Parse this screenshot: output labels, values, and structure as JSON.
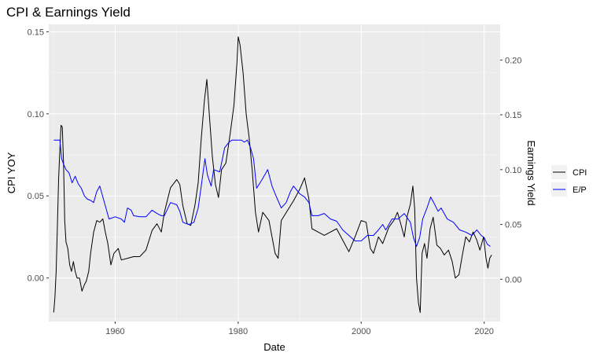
{
  "chart_data": {
    "type": "line",
    "title": "CPI & Earnings Yield",
    "xlabel": "Date",
    "ylabel": "CPI YOY",
    "y2label": "Earnings Yield",
    "xlim": [
      1949.2,
      2022.6
    ],
    "ylim": [
      -0.0265,
      0.1545
    ],
    "y2lim": [
      -0.0385,
      0.2325
    ],
    "x_ticks": [
      1960,
      1980,
      2000,
      2020
    ],
    "x_tick_labels": [
      "1960",
      "1980",
      "2000",
      "2020"
    ],
    "y_ticks": [
      0.0,
      0.05,
      0.1,
      0.15
    ],
    "y_tick_labels": [
      "0.00",
      "0.05",
      "0.10",
      "0.15"
    ],
    "y2_ticks": [
      0.0,
      0.05,
      0.1,
      0.15,
      0.2
    ],
    "y2_tick_labels": [
      "0.00",
      "0.05",
      "0.10",
      "0.15",
      "0.20"
    ],
    "grid": true,
    "legend": {
      "placement": "right",
      "entries": [
        {
          "name": "CPI",
          "color": "#000000"
        },
        {
          "name": "E/P",
          "color": "#0000ff"
        }
      ]
    },
    "series": [
      {
        "name": "CPI",
        "axis": "left",
        "color": "#000000",
        "x": [
          1950.0,
          1950.2,
          1950.4,
          1950.6,
          1950.8,
          1951.0,
          1951.2,
          1951.4,
          1951.6,
          1951.8,
          1952.0,
          1952.3,
          1952.6,
          1952.9,
          1953.2,
          1953.5,
          1953.8,
          1954.2,
          1954.6,
          1955.0,
          1955.3,
          1955.7,
          1956.0,
          1956.5,
          1957.0,
          1957.5,
          1958.0,
          1958.4,
          1958.8,
          1959.3,
          1959.8,
          1960.5,
          1961.0,
          1962.0,
          1963.0,
          1964.0,
          1965.0,
          1966.0,
          1966.8,
          1967.5,
          1968.0,
          1969.0,
          1970.0,
          1970.5,
          1971.0,
          1971.7,
          1972.3,
          1973.0,
          1973.5,
          1974.0,
          1974.5,
          1974.9,
          1975.3,
          1975.8,
          1976.3,
          1976.8,
          1977.3,
          1978.0,
          1978.7,
          1979.3,
          1979.8,
          1980.0,
          1980.3,
          1980.8,
          1981.3,
          1981.8,
          1982.3,
          1982.8,
          1983.3,
          1984.0,
          1985.0,
          1986.0,
          1986.5,
          1987.0,
          1988.0,
          1989.0,
          1990.0,
          1990.8,
          1991.5,
          1992.0,
          1993.0,
          1994.0,
          1995.0,
          1996.0,
          1997.0,
          1998.0,
          1999.0,
          2000.0,
          2000.8,
          2001.5,
          2002.0,
          2002.8,
          2003.5,
          2004.5,
          2005.3,
          2005.9,
          2006.5,
          2007.0,
          2007.5,
          2008.0,
          2008.4,
          2008.7,
          2009.0,
          2009.3,
          2009.6,
          2009.9,
          2010.3,
          2010.7,
          2011.2,
          2011.7,
          2012.3,
          2012.9,
          2013.5,
          2014.2,
          2014.8,
          2015.3,
          2015.9,
          2016.5,
          2017.0,
          2017.6,
          2018.2,
          2018.8,
          2019.3,
          2019.9,
          2020.3,
          2020.6,
          2020.9,
          2021.2
        ],
        "values": [
          -0.021,
          -0.012,
          0.004,
          0.03,
          0.06,
          0.078,
          0.093,
          0.092,
          0.07,
          0.035,
          0.022,
          0.018,
          0.008,
          0.004,
          0.01,
          0.004,
          0.0,
          0.0,
          -0.008,
          -0.004,
          -0.002,
          0.004,
          0.015,
          0.028,
          0.035,
          0.034,
          0.036,
          0.028,
          0.021,
          0.008,
          0.015,
          0.018,
          0.011,
          0.012,
          0.013,
          0.013,
          0.017,
          0.029,
          0.033,
          0.028,
          0.04,
          0.055,
          0.06,
          0.057,
          0.044,
          0.033,
          0.032,
          0.045,
          0.058,
          0.085,
          0.108,
          0.121,
          0.1,
          0.074,
          0.057,
          0.049,
          0.066,
          0.07,
          0.088,
          0.105,
          0.131,
          0.147,
          0.142,
          0.125,
          0.1,
          0.085,
          0.065,
          0.04,
          0.028,
          0.04,
          0.035,
          0.015,
          0.012,
          0.035,
          0.041,
          0.047,
          0.054,
          0.061,
          0.048,
          0.03,
          0.028,
          0.026,
          0.028,
          0.03,
          0.023,
          0.016,
          0.025,
          0.035,
          0.034,
          0.018,
          0.015,
          0.025,
          0.021,
          0.031,
          0.035,
          0.04,
          0.032,
          0.025,
          0.038,
          0.045,
          0.056,
          0.042,
          0.0,
          -0.015,
          -0.021,
          0.015,
          0.021,
          0.012,
          0.03,
          0.037,
          0.02,
          0.018,
          0.014,
          0.017,
          0.01,
          0.0,
          0.002,
          0.015,
          0.025,
          0.022,
          0.028,
          0.023,
          0.017,
          0.025,
          0.012,
          0.006,
          0.012,
          0.014
        ]
      },
      {
        "name": "E/P",
        "axis": "right",
        "color": "#0000ff",
        "x": [
          1950.0,
          1951.0,
          1951.3,
          1951.6,
          1952.0,
          1952.5,
          1953.0,
          1953.5,
          1954.0,
          1954.5,
          1955.0,
          1955.5,
          1956.0,
          1956.5,
          1957.0,
          1957.5,
          1958.0,
          1958.5,
          1959.0,
          1960.0,
          1961.0,
          1961.5,
          1962.0,
          1962.6,
          1963.0,
          1964.0,
          1965.0,
          1966.0,
          1966.8,
          1967.5,
          1968.0,
          1969.0,
          1970.0,
          1970.5,
          1971.0,
          1972.0,
          1972.8,
          1973.5,
          1974.0,
          1974.6,
          1975.0,
          1975.6,
          1976.0,
          1977.0,
          1977.8,
          1978.5,
          1979.0,
          1979.5,
          1980.0,
          1980.5,
          1981.0,
          1981.5,
          1982.0,
          1982.5,
          1983.0,
          1984.0,
          1984.8,
          1985.5,
          1986.0,
          1987.0,
          1987.8,
          1988.5,
          1989.0,
          1990.0,
          1990.8,
          1991.5,
          1992.0,
          1993.0,
          1994.0,
          1995.0,
          1996.0,
          1997.0,
          1998.0,
          1999.0,
          2000.0,
          2001.0,
          2002.0,
          2002.8,
          2003.5,
          2004.0,
          2005.0,
          2006.0,
          2007.0,
          2008.0,
          2008.5,
          2009.0,
          2009.5,
          2010.0,
          2010.7,
          2011.3,
          2011.8,
          2012.5,
          2013.0,
          2014.0,
          2015.0,
          2016.0,
          2017.0,
          2018.0,
          2018.8,
          2019.5,
          2020.0,
          2020.5,
          2021.0
        ],
        "values": [
          0.127,
          0.127,
          0.11,
          0.105,
          0.1,
          0.097,
          0.088,
          0.094,
          0.087,
          0.083,
          0.076,
          0.073,
          0.072,
          0.07,
          0.08,
          0.085,
          0.075,
          0.065,
          0.055,
          0.057,
          0.055,
          0.052,
          0.065,
          0.063,
          0.058,
          0.057,
          0.057,
          0.063,
          0.06,
          0.058,
          0.058,
          0.07,
          0.068,
          0.062,
          0.052,
          0.05,
          0.052,
          0.065,
          0.085,
          0.11,
          0.095,
          0.085,
          0.1,
          0.098,
          0.12,
          0.125,
          0.127,
          0.127,
          0.127,
          0.127,
          0.125,
          0.127,
          0.12,
          0.11,
          0.083,
          0.092,
          0.1,
          0.085,
          0.078,
          0.065,
          0.07,
          0.08,
          0.085,
          0.078,
          0.075,
          0.07,
          0.058,
          0.058,
          0.06,
          0.055,
          0.053,
          0.045,
          0.04,
          0.035,
          0.035,
          0.04,
          0.04,
          0.045,
          0.05,
          0.045,
          0.055,
          0.055,
          0.06,
          0.052,
          0.038,
          0.03,
          0.038,
          0.055,
          0.065,
          0.075,
          0.07,
          0.062,
          0.065,
          0.055,
          0.052,
          0.045,
          0.043,
          0.04,
          0.045,
          0.04,
          0.038,
          0.032,
          0.03
        ]
      }
    ]
  }
}
